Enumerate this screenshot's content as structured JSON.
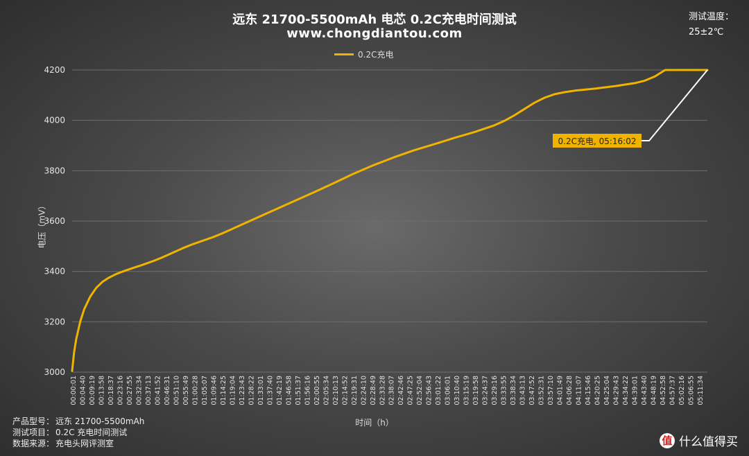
{
  "title": "远东 21700-5500mAh 电芯 0.2C充电时间测试",
  "subtitle": "www.chongdiantou.com",
  "temperature": {
    "label": "测试温度：",
    "value": "25±2℃"
  },
  "footer": {
    "product_key": "产品型号：",
    "product_val": "远东 21700-5500mAh",
    "test_key": "测试项目：",
    "test_val": "0.2C 充电时间测试",
    "source_key": "数据来源：",
    "source_val": "充电头网评测室"
  },
  "logo": {
    "badge": "值",
    "text": "什么值得买"
  },
  "chart_data": {
    "type": "line",
    "title": "远东 21700-5500mAh 电芯 0.2C充电时间测试",
    "xlabel": "时间（h）",
    "ylabel": "电压（mV）",
    "ylim": [
      3000,
      4200
    ],
    "yticks": [
      3000,
      3200,
      3400,
      3600,
      3800,
      4000,
      4200
    ],
    "grid": true,
    "legend_position": "top-center",
    "colors": {
      "series": "#f0b400",
      "grid": "#6e6e6e",
      "annotation": "#ffffff"
    },
    "x_tick_labels": [
      "00:00:01",
      "00:04:40",
      "00:09:19",
      "00:13:58",
      "00:18:37",
      "00:23:16",
      "00:27:55",
      "00:32:34",
      "00:37:13",
      "00:41:52",
      "00:46:31",
      "00:51:10",
      "00:55:49",
      "01:00:28",
      "01:05:07",
      "01:09:46",
      "01:14:25",
      "01:19:04",
      "01:23:43",
      "01:28:22",
      "01:33:01",
      "01:37:40",
      "01:42:19",
      "01:46:58",
      "01:51:37",
      "01:56:16",
      "02:00:55",
      "02:05:34",
      "02:10:13",
      "02:14:52",
      "02:19:31",
      "02:24:10",
      "02:28:49",
      "02:33:28",
      "02:38:07",
      "02:42:46",
      "02:47:25",
      "02:52:04",
      "02:56:43",
      "03:01:22",
      "03:06:01",
      "03:10:40",
      "03:15:19",
      "03:19:58",
      "03:24:37",
      "03:29:16",
      "03:33:55",
      "03:38:34",
      "03:43:13",
      "03:47:52",
      "03:52:31",
      "03:57:10",
      "04:01:49",
      "04:06:28",
      "04:11:07",
      "04:15:46",
      "04:20:25",
      "04:25:04",
      "04:29:43",
      "04:34:22",
      "04:39:01",
      "04:43:40",
      "04:48:19",
      "04:52:58",
      "04:57:37",
      "05:02:16",
      "05:06:55",
      "05:11:34"
    ],
    "series": [
      {
        "name": "0.2C充电",
        "x_minutes": [
          0,
          1,
          2,
          4,
          6,
          9,
          12,
          15,
          18,
          22,
          26,
          30,
          35,
          40,
          45,
          50,
          55,
          60,
          65,
          70,
          75,
          80,
          90,
          100,
          110,
          120,
          130,
          140,
          150,
          160,
          170,
          180,
          190,
          200,
          210,
          215,
          220,
          225,
          230,
          235,
          240,
          245,
          250,
          260,
          270,
          280,
          285,
          290,
          295,
          300,
          305,
          310,
          316
        ],
        "values": [
          3005,
          3080,
          3130,
          3200,
          3250,
          3300,
          3335,
          3358,
          3374,
          3390,
          3402,
          3413,
          3426,
          3440,
          3456,
          3474,
          3492,
          3508,
          3522,
          3536,
          3552,
          3570,
          3606,
          3642,
          3678,
          3713,
          3750,
          3788,
          3822,
          3853,
          3881,
          3905,
          3930,
          3953,
          3980,
          3998,
          4020,
          4045,
          4070,
          4090,
          4104,
          4112,
          4118,
          4126,
          4136,
          4148,
          4158,
          4175,
          4200,
          4200,
          4200,
          4200,
          4200
        ]
      }
    ],
    "annotation": {
      "text": "0.2C充电, 05:16:02"
    }
  }
}
